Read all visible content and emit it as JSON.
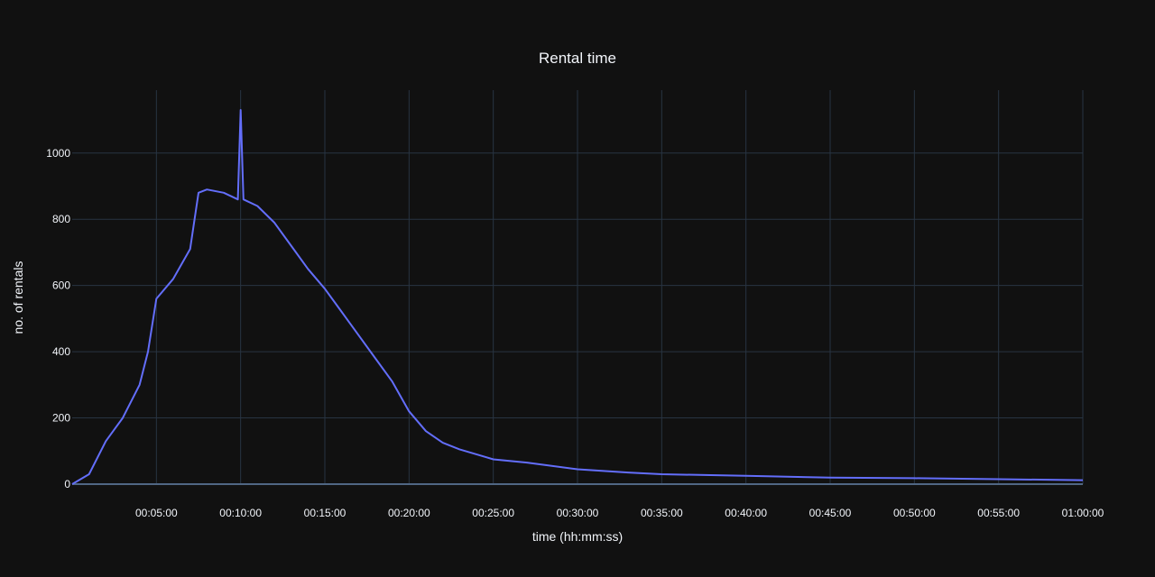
{
  "chart_data": {
    "type": "line",
    "title": "Rental time",
    "xlabel": "time (hh:mm:ss)",
    "ylabel": "no. of rentals",
    "xlim": [
      "00:00:00",
      "01:00:00"
    ],
    "ylim": [
      0,
      1190
    ],
    "x_tick_labels": [
      "00:05:00",
      "00:10:00",
      "00:15:00",
      "00:20:00",
      "00:25:00",
      "00:30:00",
      "00:35:00",
      "00:40:00",
      "00:45:00",
      "00:50:00",
      "00:55:00",
      "01:00:00"
    ],
    "y_ticks": [
      0,
      200,
      400,
      600,
      800,
      1000
    ],
    "grid": true,
    "series": [
      {
        "color": "#636efa",
        "x": [
          "00:00:00",
          "00:01:00",
          "00:02:00",
          "00:03:00",
          "00:04:00",
          "00:04:30",
          "00:05:00",
          "00:06:00",
          "00:07:00",
          "00:07:30",
          "00:08:00",
          "00:09:00",
          "00:09:50",
          "00:10:00",
          "00:10:10",
          "00:11:00",
          "00:12:00",
          "00:13:00",
          "00:14:00",
          "00:15:00",
          "00:16:00",
          "00:17:00",
          "00:18:00",
          "00:19:00",
          "00:20:00",
          "00:21:00",
          "00:22:00",
          "00:23:00",
          "00:24:00",
          "00:25:00",
          "00:27:00",
          "00:30:00",
          "00:33:00",
          "00:35:00",
          "00:40:00",
          "00:45:00",
          "00:50:00",
          "00:55:00",
          "01:00:00"
        ],
        "y": [
          0,
          30,
          130,
          200,
          300,
          400,
          560,
          620,
          710,
          880,
          890,
          880,
          860,
          1130,
          860,
          840,
          790,
          720,
          650,
          590,
          520,
          450,
          380,
          310,
          220,
          160,
          125,
          105,
          90,
          75,
          65,
          45,
          35,
          30,
          25,
          20,
          18,
          15,
          12
        ]
      }
    ]
  }
}
